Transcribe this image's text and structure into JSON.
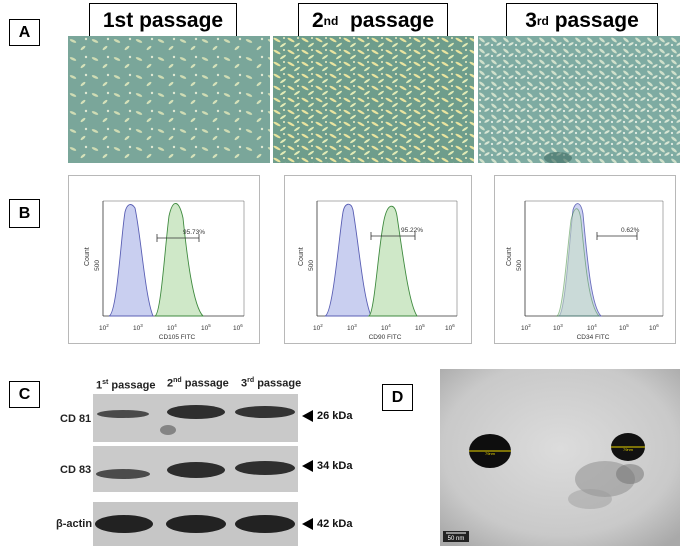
{
  "panels": {
    "a": "A",
    "b": "B",
    "c": "C",
    "d": "D"
  },
  "passages": [
    {
      "num": "1st",
      "sup": "",
      "word": "passage"
    },
    {
      "num": "2",
      "sup": "nd",
      "word": "passage"
    },
    {
      "num": "3",
      "sup": "rd",
      "word": "passage"
    }
  ],
  "flow": [
    {
      "marker": "CD105 FITC",
      "percent": "95.73%",
      "ylabel": "Count",
      "ytick": "500",
      "xticks_exp": [
        "2",
        "3",
        "4",
        "5",
        "6"
      ]
    },
    {
      "marker": "CD90 FITC",
      "percent": "95.22%",
      "ylabel": "Count",
      "ytick": "500",
      "xticks_exp": [
        "2",
        "3",
        "4",
        "5",
        "6"
      ]
    },
    {
      "marker": "CD34 FITC",
      "percent": "0.62%",
      "ylabel": "Count",
      "ytick": "500",
      "xticks_exp": [
        "2",
        "3",
        "4",
        "5",
        "6"
      ]
    }
  ],
  "blot": {
    "lanes": [
      {
        "num": "1",
        "sup": "st",
        "word": "passage"
      },
      {
        "num": "2",
        "sup": "nd",
        "word": "passage"
      },
      {
        "num": "3",
        "sup": "rd",
        "word": "passage"
      }
    ],
    "rows": [
      {
        "protein": "CD 81",
        "size": "26 kDa"
      },
      {
        "protein": "CD 83",
        "size": "34 kDa"
      },
      {
        "protein": "β-actin",
        "size": "42 kDa"
      }
    ]
  },
  "tem": {
    "scale": "50 nm",
    "particle_label": "79nm"
  }
}
